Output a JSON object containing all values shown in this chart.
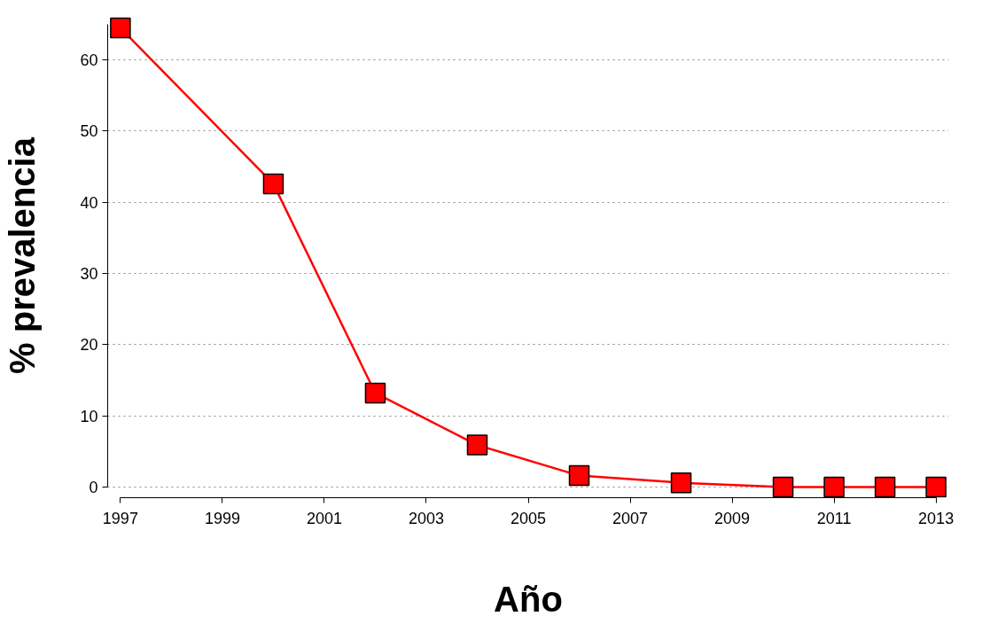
{
  "chart_data": {
    "type": "line",
    "xlabel": "Año",
    "ylabel": "% prevalencia",
    "x": [
      1997,
      2000,
      2002,
      2004,
      2006,
      2008,
      2010,
      2011,
      2012,
      2013
    ],
    "series": [
      {
        "color": "#ff0000",
        "values": [
          64.5,
          42.6,
          13.2,
          5.9,
          1.6,
          0.6,
          0,
          0,
          0,
          0
        ]
      }
    ],
    "xlim": [
      1997,
      2013
    ],
    "xticks": [
      1997,
      1999,
      2001,
      2003,
      2005,
      2007,
      2009,
      2011,
      2013
    ],
    "ylim": [
      0,
      65
    ],
    "yticks": [
      0,
      10,
      20,
      30,
      40,
      50,
      60
    ],
    "grid": "y",
    "marker": "square",
    "line_style": "solid"
  }
}
